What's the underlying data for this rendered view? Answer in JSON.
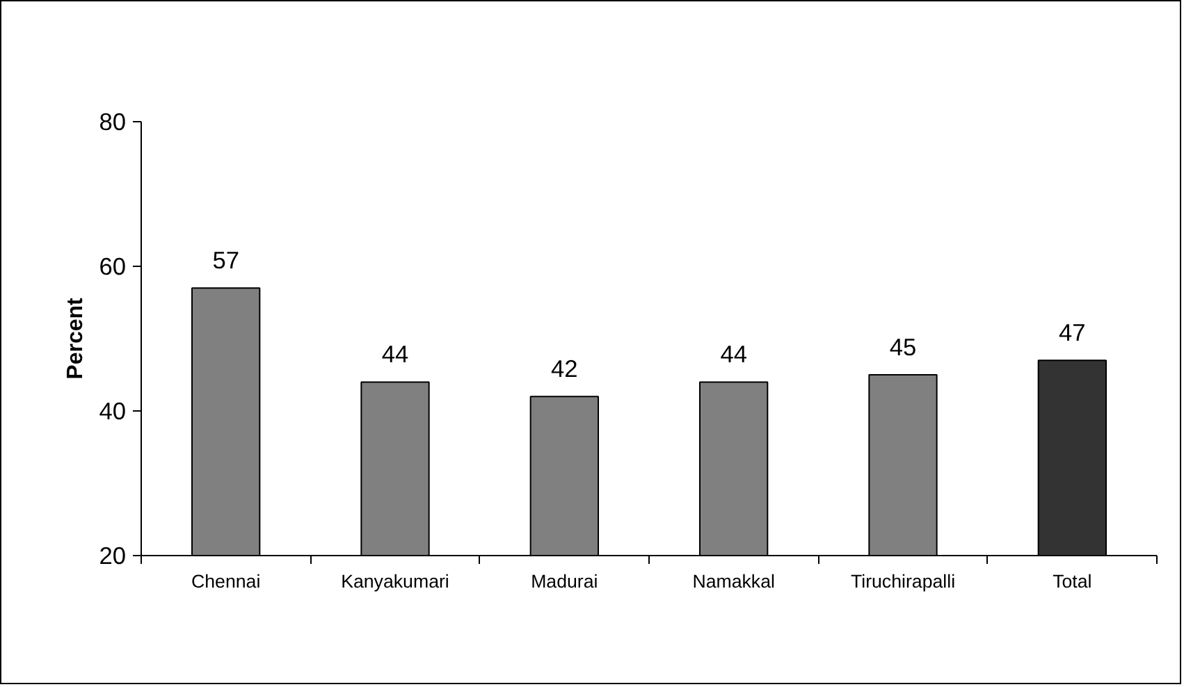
{
  "chart_data": {
    "type": "bar",
    "ylabel": "Percent",
    "categories": [
      "Chennai",
      "Kanyakumari",
      "Madurai",
      "Namakkal",
      "Tiruchirapalli",
      "Total"
    ],
    "values": [
      57,
      44,
      42,
      44,
      45,
      47
    ],
    "colors": [
      "#808080",
      "#808080",
      "#808080",
      "#808080",
      "#808080",
      "#333333"
    ],
    "ylim": [
      20,
      80
    ],
    "yticks": [
      20,
      40,
      60,
      80
    ],
    "data_labels": true,
    "grid": false
  }
}
